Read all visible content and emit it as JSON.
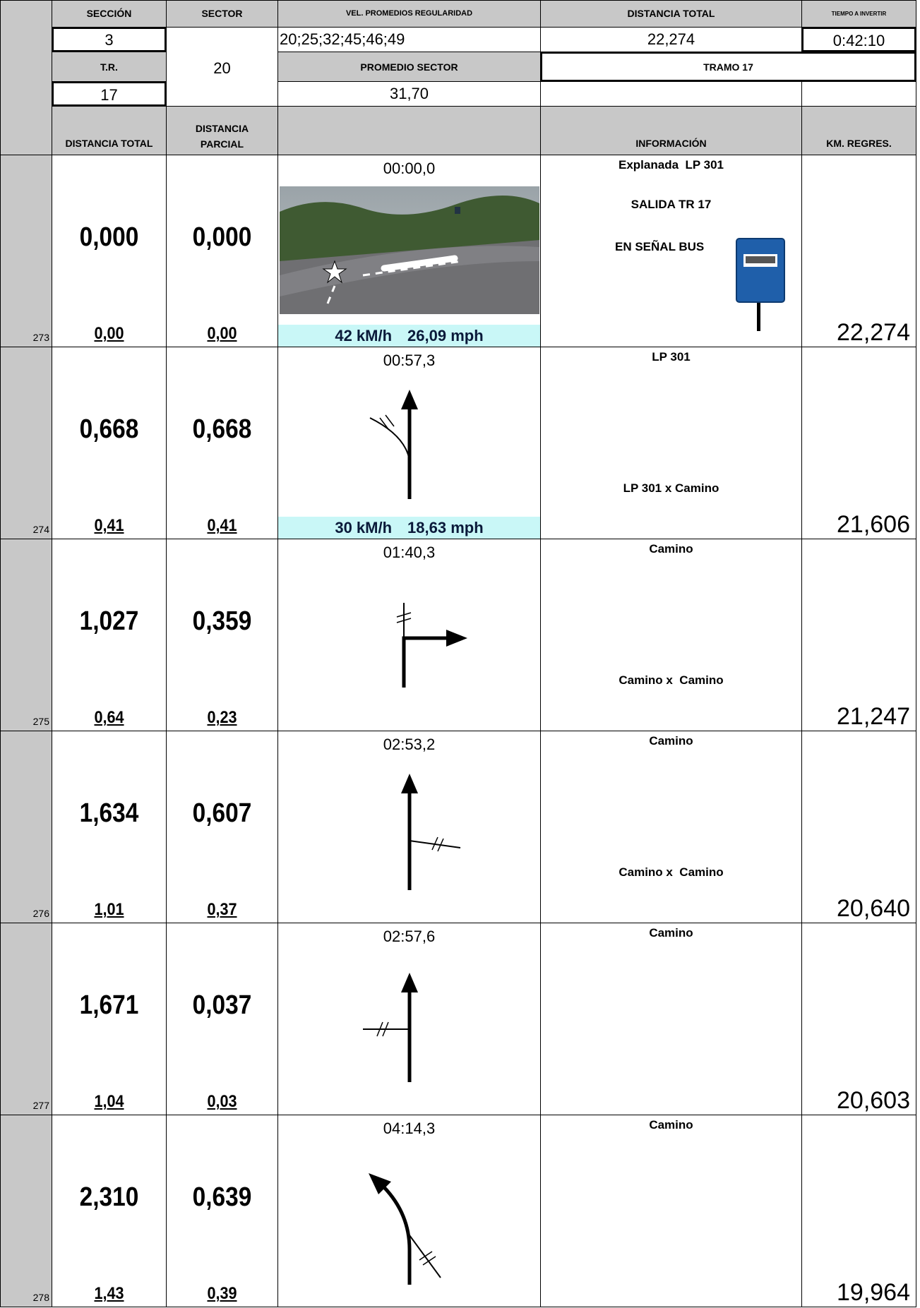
{
  "header": {
    "seccion_label": "SECCIÓN",
    "seccion": "3",
    "sector_label": "SECTOR",
    "sector": "20",
    "vel_label": "VEL. PROMEDIOS REGULARIDAD",
    "vel": "20;25;32;45;46;49",
    "dist_label": "DISTANCIA TOTAL",
    "dist": "22,274",
    "tiempo_label": "TIEMPO A INVERTIR",
    "tiempo": "0:42:10",
    "tr_label": "T.R.",
    "tr": "17",
    "promedio_label": "PROMEDIO SECTOR",
    "promedio": "31,70",
    "tramo": "TRAMO 17"
  },
  "columns": {
    "total": "DISTANCIA TOTAL",
    "partial": "DISTANCIA PARCIAL",
    "info": "INFORMACIÓN",
    "km": "KM. REGRES."
  },
  "rows": [
    {
      "number": "273",
      "total": "0,000",
      "partial": "0,000",
      "total_sub": "0,00",
      "partial_sub": "0,00",
      "time": "00:00,0",
      "speed_kmh": "42 kM/h",
      "speed_mph": "26,09 mph",
      "info_top": "Explanada  LP 301",
      "info_lines": [
        "SALIDA TR 17",
        "EN SEÑAL BUS"
      ],
      "km": "22,274"
    },
    {
      "number": "274",
      "total": "0,668",
      "partial": "0,668",
      "total_sub": "0,41",
      "partial_sub": "0,41",
      "time": "00:57,3",
      "speed_kmh": "30 kM/h",
      "speed_mph": "18,63 mph",
      "info_top": "LP 301",
      "info_bottom": "LP 301 x Camino",
      "km": "21,606"
    },
    {
      "number": "275",
      "total": "1,027",
      "partial": "0,359",
      "total_sub": "0,64",
      "partial_sub": "0,23",
      "time": "01:40,3",
      "info_top": "Camino",
      "info_bottom": "Camino x  Camino",
      "km": "21,247"
    },
    {
      "number": "276",
      "total": "1,634",
      "partial": "0,607",
      "total_sub": "1,01",
      "partial_sub": "0,37",
      "time": "02:53,2",
      "info_top": "Camino",
      "info_bottom": "Camino x  Camino",
      "km": "20,640"
    },
    {
      "number": "277",
      "total": "1,671",
      "partial": "0,037",
      "total_sub": "1,04",
      "partial_sub": "0,03",
      "time": "02:57,6",
      "info_top": "Camino",
      "km": "20,603"
    },
    {
      "number": "278",
      "total": "2,310",
      "partial": "0,639",
      "total_sub": "1,43",
      "partial_sub": "0,39",
      "time": "04:14,3",
      "info_top": "Camino",
      "km": "19,964"
    }
  ]
}
